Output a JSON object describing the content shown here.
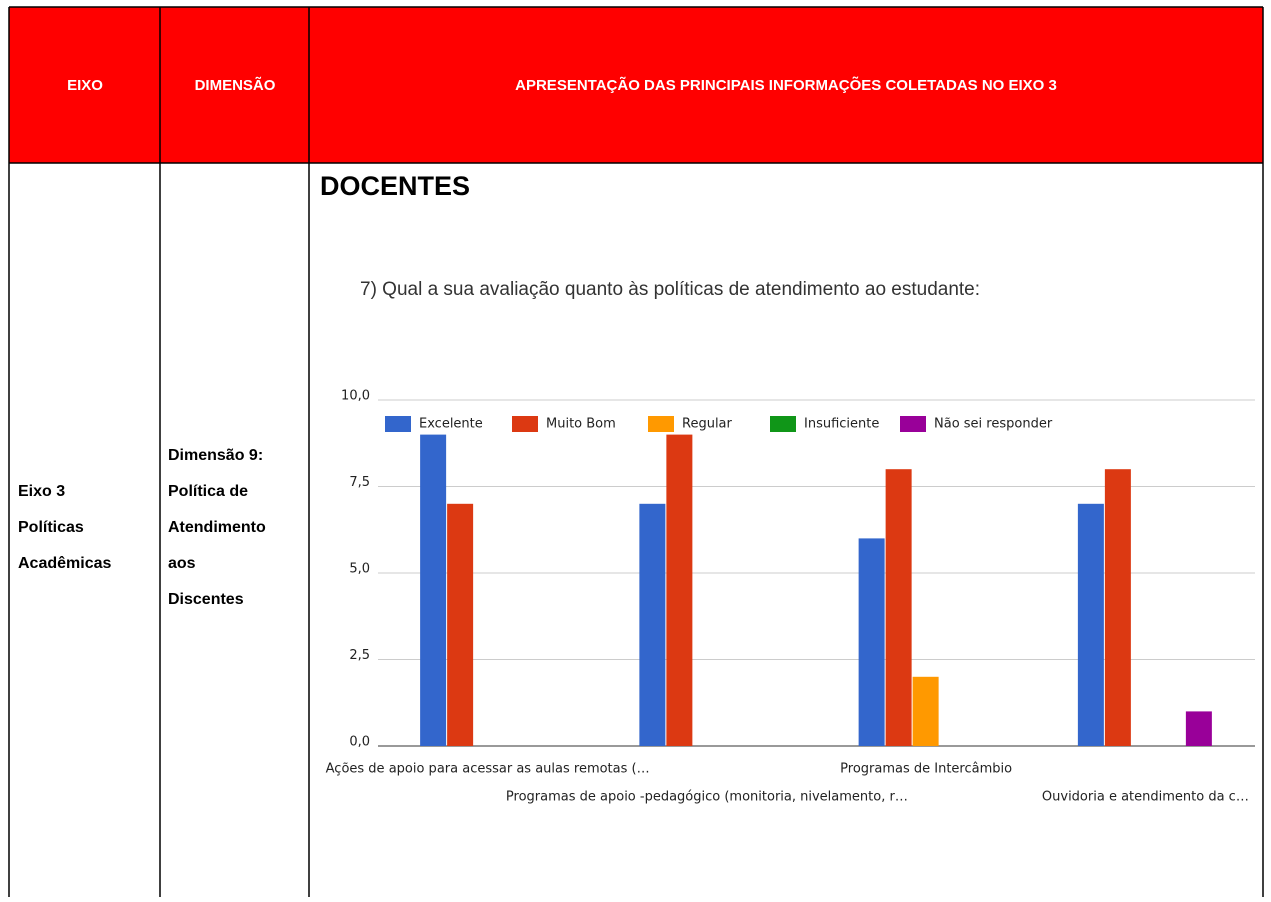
{
  "table": {
    "header": [
      "EIXO",
      "DIMENSÃO",
      "APRESENTAÇÃO DAS PRINCIPAIS INFORMAÇÕES COLETADAS NO EIXO 3"
    ],
    "rows": [
      {
        "eixo": [
          "Eixo 3",
          "Políticas",
          "Acadêmicas"
        ],
        "dimensao": [
          "Dimensão 9:",
          "Política de",
          "Atendimento",
          "aos",
          "Discentes"
        ],
        "heading": "DOCENTES"
      }
    ]
  },
  "chart_data": {
    "type": "bar",
    "title": "7) Qual a sua avaliação quanto às políticas de atendimento ao estudante:",
    "categories": [
      "Ações de apoio para acessar as aulas remotas (…",
      "Programas de apoio -pedagógico (monitoria, nivelamento, r…",
      "Programas de Intercâmbio",
      "Ouvidoria e atendimento da c…"
    ],
    "series": [
      {
        "name": "Excelente",
        "color": "#3366cc",
        "values": [
          9,
          7,
          6,
          7
        ]
      },
      {
        "name": "Muito Bom",
        "color": "#dc3912",
        "values": [
          7,
          9,
          8,
          8
        ]
      },
      {
        "name": "Regular",
        "color": "#ff9900",
        "values": [
          0,
          0,
          2,
          0
        ]
      },
      {
        "name": "Insuficiente",
        "color": "#109618",
        "values": [
          0,
          0,
          0,
          0
        ]
      },
      {
        "name": "Não sei responder",
        "color": "#990099",
        "values": [
          0,
          0,
          0,
          1
        ]
      }
    ],
    "ylim": [
      0,
      10
    ],
    "yticks": [
      {
        "value": 0,
        "label": "0,0"
      },
      {
        "value": 2.5,
        "label": "2,5"
      },
      {
        "value": 5,
        "label": "5,0"
      },
      {
        "value": 7.5,
        "label": "7,5"
      },
      {
        "value": 10,
        "label": "10,0"
      }
    ],
    "grid": true,
    "legend": "top"
  }
}
